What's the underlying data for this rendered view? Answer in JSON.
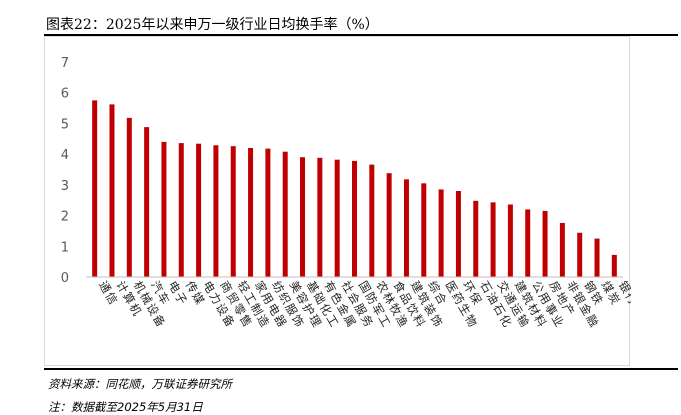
{
  "header": {
    "title": "图表22：2025年以来申万一级行业日均换手率（%）"
  },
  "footer": {
    "source": "资料来源：同花顺，万联证券研究所",
    "note": "注：数据截至2025年5月31日"
  },
  "chart_data": {
    "type": "bar",
    "categories": [
      "通信",
      "计算机",
      "机械设备",
      "汽车",
      "电子",
      "传媒",
      "电力设备",
      "商贸零售",
      "轻工制造",
      "家用电器",
      "纺织服饰",
      "美容护理",
      "基础化工",
      "有色金属",
      "社会服务",
      "国防军工",
      "农林牧渔",
      "食品饮料",
      "建筑装饰",
      "综合",
      "医药生物",
      "环保",
      "石油石化",
      "交通运输",
      "建筑材料",
      "公用事业",
      "房地产",
      "非银金融",
      "钢铁",
      "煤炭",
      "银行"
    ],
    "values": [
      5.75,
      5.62,
      5.18,
      4.88,
      4.4,
      4.36,
      4.34,
      4.29,
      4.26,
      4.2,
      4.18,
      4.08,
      3.9,
      3.88,
      3.82,
      3.78,
      3.66,
      3.38,
      3.18,
      3.05,
      2.85,
      2.8,
      2.48,
      2.43,
      2.36,
      2.2,
      2.15,
      1.76,
      1.44,
      1.25,
      0.72
    ],
    "ylim": [
      0,
      7
    ],
    "yticks": [
      0,
      1,
      2,
      3,
      4,
      5,
      6,
      7
    ],
    "title": "",
    "xlabel": "",
    "ylabel": "",
    "grid": false,
    "legend": "none",
    "bar_color": "#C00000"
  }
}
